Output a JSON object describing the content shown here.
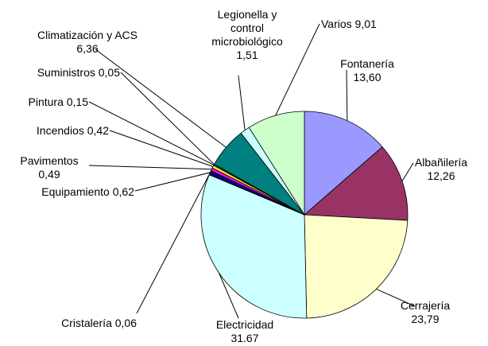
{
  "chart_data": {
    "type": "pie",
    "categories": [
      "Fontanería",
      "Albañilería",
      "Cerrajería",
      "Electricidad",
      "Cristalería",
      "Equipamiento",
      "Pavimentos",
      "Incendios",
      "Pintura",
      "Suministros",
      "Climatización y ACS",
      "Legionella y control microbiológico",
      "Varios"
    ],
    "values": [
      13.6,
      12.26,
      23.79,
      31.67,
      0.06,
      0.62,
      0.49,
      0.42,
      0.15,
      0.05,
      6.36,
      1.51,
      9.01
    ],
    "value_labels": [
      "13,60",
      "12,26",
      "23,79",
      "31.67",
      "0,06",
      "0,62",
      "0,49",
      "0,42",
      "0,15",
      "0,05",
      "6,36",
      "1,51",
      "9,01"
    ],
    "colors": [
      "#9999ff",
      "#993366",
      "#ffffcc",
      "#ccffff",
      "#660066",
      "#000080",
      "#ff00ff",
      "#ffff00",
      "#00ffff",
      "#800080",
      "#008080",
      "#ccffff",
      "#ccffcc"
    ]
  }
}
